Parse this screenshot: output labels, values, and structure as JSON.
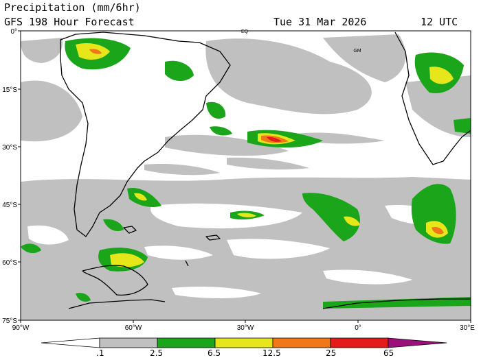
{
  "header": {
    "title": "Precipitation (mm/6hr)",
    "subtitle": "GFS 198 Hour Forecast",
    "date": "Tue 31 Mar 2026",
    "time": "12 UTC"
  },
  "map": {
    "lat_labels": [
      "0°",
      "15°S",
      "30°S",
      "45°S",
      "60°S",
      "75°S"
    ],
    "lon_labels": [
      "90°W",
      "60°W",
      "30°W",
      "0°",
      "30°E"
    ],
    "markers": [
      "EQ",
      "GM"
    ]
  },
  "colorbar": {
    "labels": [
      ".1",
      "2.5",
      "6.5",
      "12.5",
      "25",
      "65"
    ],
    "colors": [
      "#ffffff",
      "#c0c0c0",
      "#1aa51a",
      "#e6e61a",
      "#f07818",
      "#e61a1a",
      "#9a0f7a"
    ]
  }
}
